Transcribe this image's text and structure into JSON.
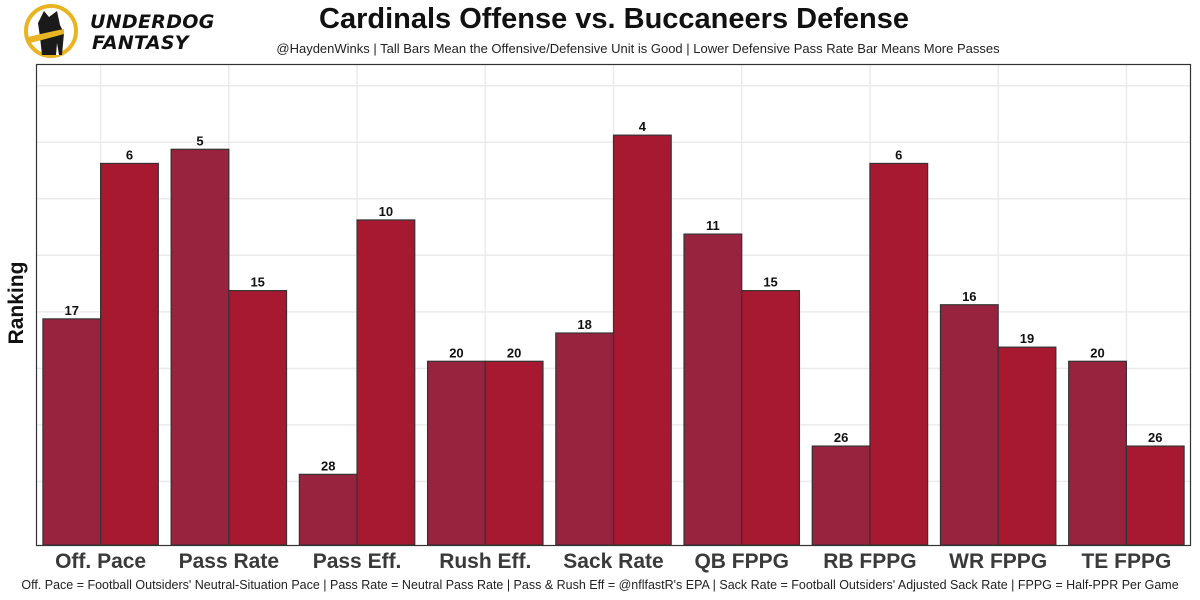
{
  "logo": {
    "line1": "UNDERDOG",
    "line2": "FANTASY"
  },
  "colors": {
    "offense": "#97233F",
    "defense": "#A71930",
    "grid": "#ebebeb",
    "panel_border": "#333333"
  },
  "chart_data": {
    "type": "bar",
    "title": "Cardinals Offense vs. Buccaneers Defense",
    "subtitle": "@HaydenWinks | Tall Bars Mean the Offensive/Defensive Unit is Good | Lower Defensive Pass Rate Bar Means More Passes",
    "xlabel": "",
    "ylabel": "Ranking",
    "caption": "Off. Pace = Football Outsiders' Neutral-Situation Pace | Pass Rate = Neutral Pass Rate | Pass & Rush Eff = @nflfastR's EPA | Sack Rate = Football Outsiders' Adjusted Sack Rate | FPPG = Half-PPR Per Game",
    "categories": [
      "Off. Pace",
      "Pass Rate",
      "Pass Eff.",
      "Rush Eff.",
      "Sack Rate",
      "QB FPPG",
      "RB FPPG",
      "WR FPPG",
      "TE FPPG"
    ],
    "series": [
      {
        "name": "Cardinals Offense",
        "values": [
          17,
          5,
          28,
          20,
          18,
          11,
          26,
          16,
          20
        ]
      },
      {
        "name": "Buccaneers Defense",
        "values": [
          6,
          15,
          10,
          20,
          4,
          15,
          6,
          19,
          26
        ]
      }
    ],
    "bar_height_rule": "33 - rank",
    "ylim": [
      0,
      34
    ],
    "grid": true,
    "legend": "none"
  }
}
